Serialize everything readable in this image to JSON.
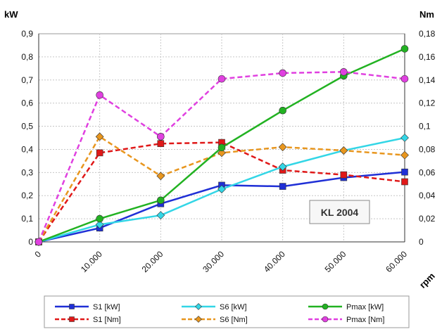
{
  "chart_data": {
    "type": "line",
    "x": [
      0,
      10000,
      20000,
      30000,
      40000,
      50000,
      60000
    ],
    "x_tick_labels": [
      "0",
      "10.000",
      "20.000",
      "30.000",
      "40.000",
      "50.000",
      "60.000"
    ],
    "xlabel": "rpm",
    "ylabel_left": "kW",
    "ylabel_right": "Nm",
    "ylim_left": [
      0,
      0.9
    ],
    "ylim_right": [
      0,
      0.18
    ],
    "y_tick_labels_left": [
      "0",
      "0,1",
      "0,2",
      "0,3",
      "0,4",
      "0,5",
      "0,6",
      "0,7",
      "0,8",
      "0,9"
    ],
    "y_tick_labels_right": [
      "0",
      "0,02",
      "0,04",
      "0,06",
      "0,08",
      "0,1",
      "0,12",
      "0,14",
      "0,16",
      "0,18"
    ],
    "grid": true,
    "legend_position": "bottom",
    "annotation": "KL 2004",
    "series": [
      {
        "name": "S1 [kW]",
        "axis": "left",
        "color": "#1f2fd6",
        "dash": "solid",
        "marker": "square",
        "values": [
          0,
          0.06,
          0.165,
          0.245,
          0.24,
          0.278,
          0.302
        ]
      },
      {
        "name": "S1 [Nm]",
        "axis": "right",
        "color": "#e01818",
        "dash": "dashed",
        "marker": "square",
        "values": [
          0,
          0.077,
          0.085,
          0.086,
          0.062,
          0.058,
          0.052
        ]
      },
      {
        "name": "S6 [kW]",
        "axis": "left",
        "color": "#33d6e6",
        "dash": "solid",
        "marker": "diamond",
        "values": [
          0,
          0.075,
          0.115,
          0.228,
          0.325,
          0.395,
          0.45
        ]
      },
      {
        "name": "S6 [Nm]",
        "axis": "right",
        "color": "#e8961e",
        "dash": "dashed",
        "marker": "diamond",
        "values": [
          0,
          0.091,
          0.057,
          0.077,
          0.082,
          0.079,
          0.075
        ]
      },
      {
        "name": "Pmax [kW]",
        "axis": "left",
        "color": "#22b222",
        "dash": "solid",
        "marker": "circle",
        "values": [
          0,
          0.1,
          0.18,
          0.408,
          0.568,
          0.718,
          0.835
        ]
      },
      {
        "name": "Pmax [Nm]",
        "axis": "right",
        "color": "#e040e0",
        "dash": "dashed",
        "marker": "circle",
        "values": [
          0,
          0.127,
          0.091,
          0.141,
          0.146,
          0.147,
          0.141
        ]
      }
    ]
  }
}
